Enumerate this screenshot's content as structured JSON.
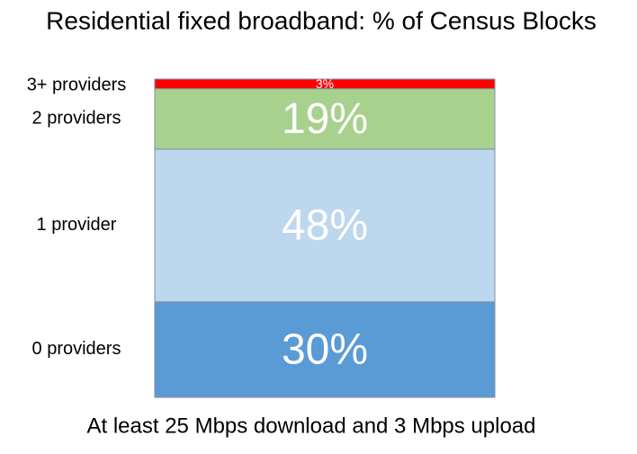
{
  "chart_data": {
    "type": "stacked-bar",
    "title": "Residential fixed broadband: % of Census Blocks",
    "x_label": "At least 25 Mbps download and 3 Mbps upload",
    "ylim": [
      0,
      100
    ],
    "series": [
      {
        "name": "0 providers",
        "color": "#5b9bd5",
        "values": [
          30
        ],
        "value_labels": [
          "30%"
        ]
      },
      {
        "name": "1 provider",
        "color": "#bdd7ee",
        "values": [
          48
        ],
        "value_labels": [
          "48%"
        ]
      },
      {
        "name": "2 providers",
        "color": "#a9d18e",
        "values": [
          19
        ],
        "value_labels": [
          "19%"
        ]
      },
      {
        "name": "3+ providers",
        "color": "#ff0000",
        "values": [
          3
        ],
        "value_labels": [
          "3%"
        ]
      }
    ]
  }
}
